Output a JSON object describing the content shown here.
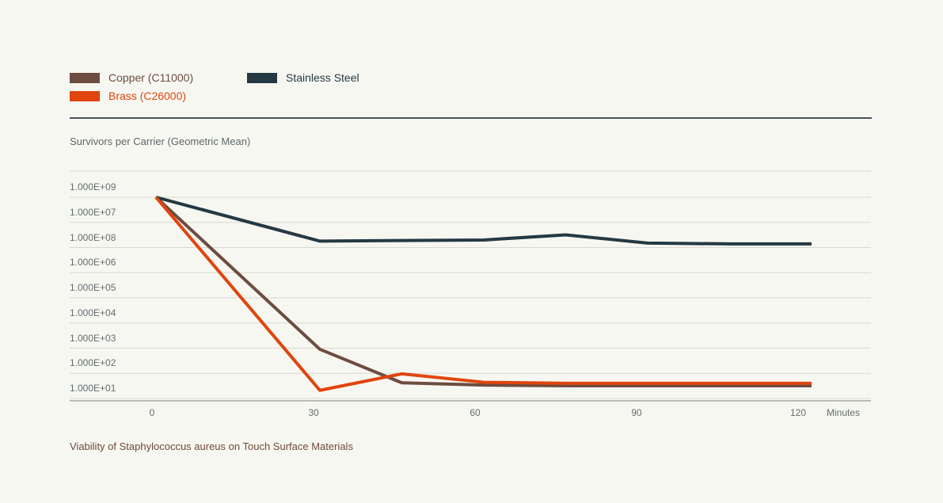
{
  "colors": {
    "background": "#f7f7f1",
    "gridline": "#d7d9d3",
    "axis_line": "#a3a8a5",
    "divider": "#46535c",
    "text_muted": "#5c676b",
    "caption": "#6f4a3b"
  },
  "legend": {
    "items": [
      "Copper (C11000)",
      "Brass (C26000)",
      "Stainless Steel"
    ]
  },
  "chart_data": {
    "type": "line",
    "title": "Viability of Staphylococcus aureus on Touch Surface Materials",
    "ylabel": "Survivors per Carrier (Geometric Mean)",
    "xlabel": "Minutes",
    "y_scale": "log, decades from 1E+09 (top) to 1E+01 (bottom)",
    "y_tick_labels_top_to_bottom": [
      "1.000E+09",
      "1.000E+07",
      "1.000E+08",
      "1.000E+06",
      "1.000E+05",
      "1.000E+04",
      "1.000E+03",
      "1.000E+02",
      "1.000E+01"
    ],
    "y_axis_note": "tick labels 1.000E+07 and 1.000E+08 appear in swapped order in the source image",
    "x_ticks": [
      0,
      30,
      60,
      90,
      120
    ],
    "x": [
      0,
      30,
      45,
      60,
      75,
      90,
      105,
      120
    ],
    "series": [
      {
        "name": "Copper (C11000)",
        "color": "#6d4c41",
        "values": [
          1000000000,
          900,
          42,
          34,
          32,
          32,
          32,
          32
        ]
      },
      {
        "name": "Brass (C26000)",
        "color": "#e0450e",
        "values": [
          1000000000,
          21,
          95,
          44,
          40,
          40,
          40,
          40
        ]
      },
      {
        "name": "Stainless Steel",
        "color": "#243943",
        "values": [
          1000000000,
          18000000,
          19000000,
          20000000,
          32000000,
          15000000,
          14000000,
          14000000
        ]
      }
    ],
    "legend_position": "top-left",
    "grid": true
  }
}
